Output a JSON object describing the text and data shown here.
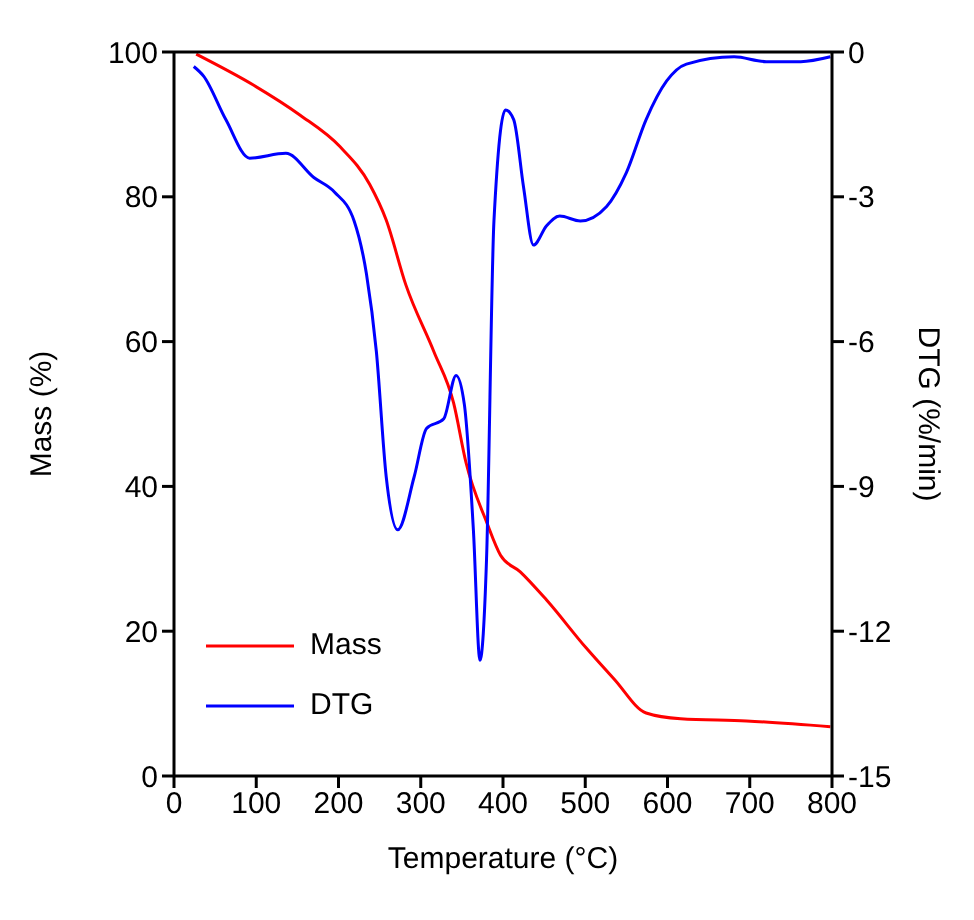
{
  "chart_data": {
    "type": "line",
    "xlabel": "Temperature (°C)",
    "ylabel": "Mass (%)",
    "y2label": "DTG (%/min)",
    "xlim": [
      0,
      800
    ],
    "xticks": [
      0,
      100,
      200,
      300,
      400,
      500,
      600,
      700,
      800
    ],
    "ylim": [
      0,
      100
    ],
    "yticks": [
      0,
      20,
      40,
      60,
      80,
      100
    ],
    "y2lim": [
      -15,
      0
    ],
    "y2ticks": [
      -15,
      -12,
      -9,
      -6,
      -3,
      0
    ],
    "legend": "bottom left",
    "grid": false,
    "marker": "none",
    "line_style": "solid",
    "series": [
      {
        "name": "Mass",
        "color": "#ff0000",
        "x": [
          27,
          97,
          153,
          202,
          238,
          258,
          282,
          316,
          340,
          355,
          380,
          397,
          421,
          453,
          501,
          535,
          574,
          616,
          696,
          798
        ],
        "values": [
          99.7,
          95.4,
          91.3,
          86.9,
          81.7,
          76.8,
          67.8,
          58.6,
          51.5,
          43.3,
          35.1,
          30.5,
          28.2,
          24.3,
          17.7,
          13.4,
          8.7,
          7.9,
          7.6,
          6.8
        ]
      },
      {
        "name": "DTG",
        "color": "#0000ff",
        "axis": "y2",
        "x": [
          24,
          36,
          63,
          92,
          136,
          170,
          195,
          219,
          234,
          246,
          258,
          272,
          292,
          307,
          328,
          343,
          353,
          364,
          372,
          380,
          389,
          403,
          413,
          425,
          437,
          453,
          469,
          494,
          526,
          550,
          574,
          599,
          623,
          681,
          720,
          762,
          798
        ],
        "values": [
          -0.3,
          -0.5,
          -1.4,
          -2.2,
          -2.1,
          -2.6,
          -2.9,
          -3.5,
          -4.6,
          -6.2,
          -8.8,
          -9.9,
          -8.8,
          -7.8,
          -7.6,
          -6.7,
          -7.3,
          -9.9,
          -12.6,
          -10.5,
          -3.5,
          -1.2,
          -1.4,
          -2.8,
          -4.0,
          -3.6,
          -3.4,
          -3.5,
          -3.2,
          -2.5,
          -1.4,
          -0.6,
          -0.25,
          -0.1,
          -0.2,
          -0.2,
          -0.1
        ]
      }
    ]
  }
}
